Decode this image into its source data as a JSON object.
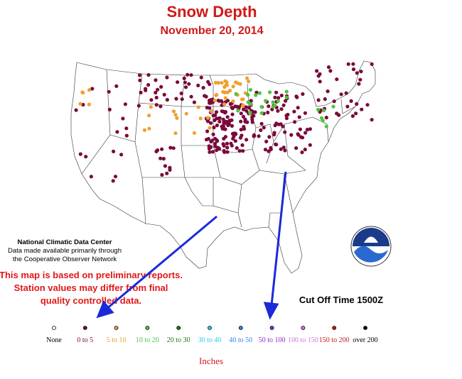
{
  "header": {
    "title": "Snow Depth",
    "subtitle": "November 20, 2014"
  },
  "credit": [
    "National Climatic Data Center",
    "Data made available primarily through",
    "the Cooperative Observer Network"
  ],
  "disclaimer": [
    "This map is based on preliminary reports.",
    "Station values may differ from final",
    "quality controlled data."
  ],
  "cutoff": "Cut Off Time 1500Z",
  "legend": {
    "items": [
      {
        "label": "None",
        "color": "#ffffff",
        "text_color": "#000000"
      },
      {
        "label": "0 to 5",
        "color": "#7a0a3c",
        "text_color": "#7a0a3c"
      },
      {
        "label": "5 to 10",
        "color": "#f0a030",
        "text_color": "#f0a030"
      },
      {
        "label": "10 to 20",
        "color": "#4cc43c",
        "text_color": "#4cc43c"
      },
      {
        "label": "20 to 30",
        "color": "#1c7a1c",
        "text_color": "#1c7a1c"
      },
      {
        "label": "30 to 40",
        "color": "#30c8e8",
        "text_color": "#30c8e8"
      },
      {
        "label": "40 to 50",
        "color": "#2a88e0",
        "text_color": "#2a88e0"
      },
      {
        "label": "50 to 100",
        "color": "#8a2ad0",
        "text_color": "#8a2ad0"
      },
      {
        "label": "100 to 150",
        "color": "#d070e0",
        "text_color": "#d070e0"
      },
      {
        "label": "150 to 200",
        "color": "#c41a1a",
        "text_color": "#c41a1a"
      },
      {
        "label": "over 200",
        "color": "#000000",
        "text_color": "#000000"
      }
    ],
    "units": "Inches"
  }
}
